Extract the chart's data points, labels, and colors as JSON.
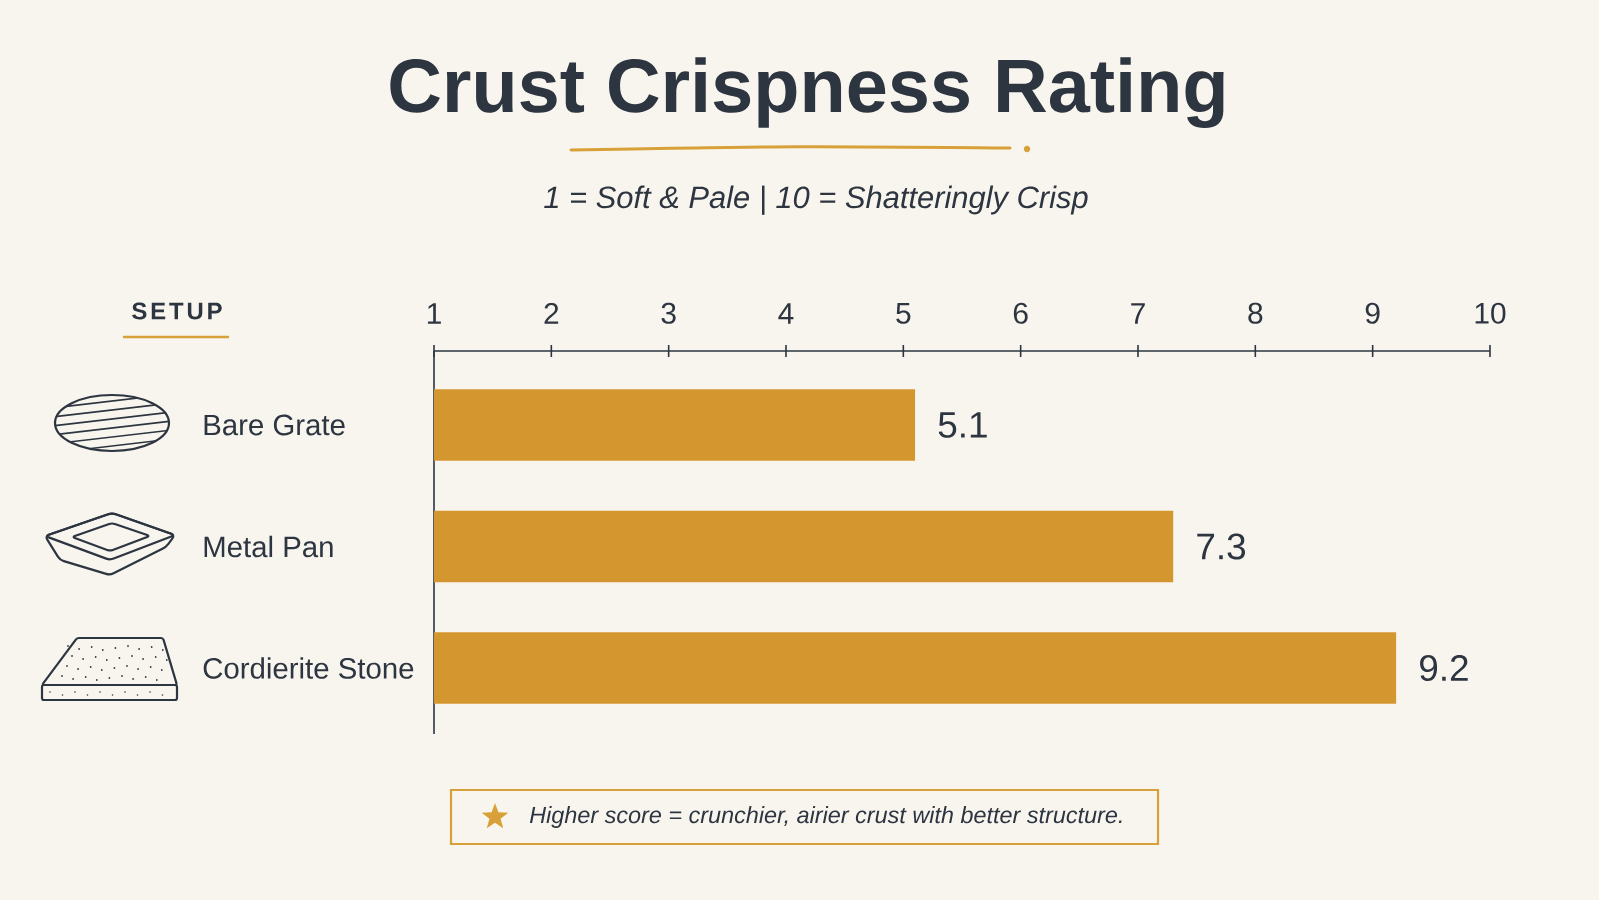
{
  "chart_data": {
    "type": "bar",
    "orientation": "horizontal",
    "title": "Crust Crispness Rating",
    "subtitle": "1 = Soft & Pale | 10 = Shatteringly Crisp",
    "ylabel": "SETUP",
    "categories": [
      "Bare Grate",
      "Metal Pan",
      "Cordierite Stone"
    ],
    "values": [
      5.1,
      7.3,
      9.2
    ],
    "color": "#d4972f",
    "xlim": [
      1,
      10
    ],
    "xticks": [
      1,
      2,
      3,
      4,
      5,
      6,
      7,
      8,
      9,
      10
    ],
    "data_labels": true,
    "annotations": [
      "Higher score = crunchier, airier crust with better structure."
    ]
  }
}
